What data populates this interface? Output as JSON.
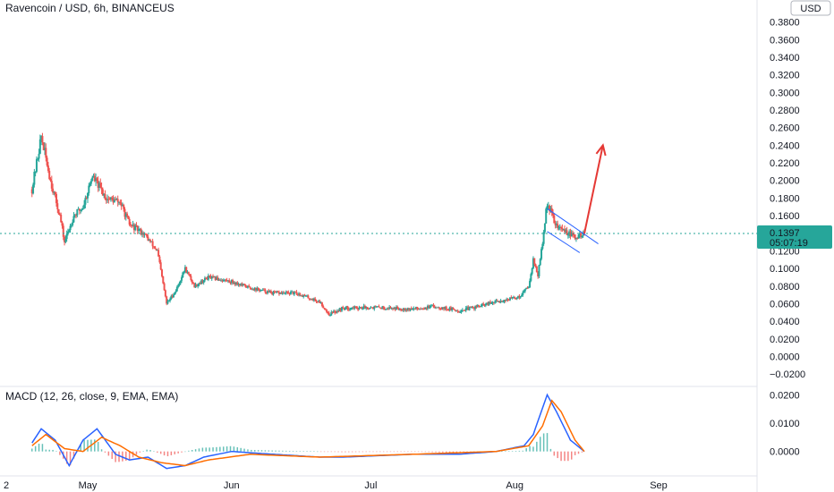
{
  "chart_data": [
    {
      "type": "candlestick",
      "title": "Ravencoin / USD, 6h, BINANCEUS",
      "currency_badge": "USD",
      "y_ticks": [
        -0.02,
        0.0,
        0.02,
        0.04,
        0.06,
        0.08,
        0.1,
        0.12,
        0.14,
        0.16,
        0.18,
        0.2,
        0.22,
        0.24,
        0.26,
        0.28,
        0.3,
        0.32,
        0.34,
        0.36,
        0.38
      ],
      "y_tick_labels": [
        "−0.0200",
        "0.0000",
        "0.0200",
        "0.0400",
        "0.0600",
        "0.0800",
        "0.1000",
        "0.1200",
        "0.1400",
        "0.1600",
        "0.1800",
        "0.2000",
        "0.2200",
        "0.2400",
        "0.2600",
        "0.2800",
        "0.3000",
        "0.3200",
        "0.3400",
        "0.3600",
        "0.3800"
      ],
      "ylim": [
        -0.032,
        0.405
      ],
      "x_tick_labels": [
        "2",
        "May",
        "Jun",
        "Jul",
        "Aug",
        "Sep"
      ],
      "last_price": {
        "value": 0.1397,
        "label": "0.1397",
        "countdown": "05:07:19",
        "color": "#26a69a"
      },
      "close_path": [
        {
          "x": "Apr 19",
          "y": 0.19
        },
        {
          "x": "Apr 21",
          "y": 0.25
        },
        {
          "x": "Apr 23",
          "y": 0.2
        },
        {
          "x": "Apr 25",
          "y": 0.16
        },
        {
          "x": "Apr 26",
          "y": 0.13
        },
        {
          "x": "Apr 28",
          "y": 0.16
        },
        {
          "x": "Apr 30",
          "y": 0.17
        },
        {
          "x": "May 2",
          "y": 0.205
        },
        {
          "x": "May 5",
          "y": 0.18
        },
        {
          "x": "May 8",
          "y": 0.175
        },
        {
          "x": "May 10",
          "y": 0.15
        },
        {
          "x": "May 13",
          "y": 0.14
        },
        {
          "x": "May 16",
          "y": 0.12
        },
        {
          "x": "May 18",
          "y": 0.06
        },
        {
          "x": "May 20",
          "y": 0.075
        },
        {
          "x": "May 22",
          "y": 0.1
        },
        {
          "x": "May 24",
          "y": 0.08
        },
        {
          "x": "May 27",
          "y": 0.09
        },
        {
          "x": "Jun 1",
          "y": 0.085
        },
        {
          "x": "Jun 5",
          "y": 0.078
        },
        {
          "x": "Jun 10",
          "y": 0.072
        },
        {
          "x": "Jun 15",
          "y": 0.072
        },
        {
          "x": "Jun 20",
          "y": 0.062
        },
        {
          "x": "Jun 22",
          "y": 0.048
        },
        {
          "x": "Jun 25",
          "y": 0.055
        },
        {
          "x": "Jul 1",
          "y": 0.056
        },
        {
          "x": "Jul 10",
          "y": 0.054
        },
        {
          "x": "Jul 15",
          "y": 0.057
        },
        {
          "x": "Jul 20",
          "y": 0.052
        },
        {
          "x": "Jul 25",
          "y": 0.058
        },
        {
          "x": "Jul 28",
          "y": 0.062
        },
        {
          "x": "Aug 2",
          "y": 0.068
        },
        {
          "x": "Aug 4",
          "y": 0.08
        },
        {
          "x": "Aug 5",
          "y": 0.11
        },
        {
          "x": "Aug 6",
          "y": 0.092
        },
        {
          "x": "Aug 7",
          "y": 0.13
        },
        {
          "x": "Aug 8",
          "y": 0.175
        },
        {
          "x": "Aug 10",
          "y": 0.148
        },
        {
          "x": "Aug 12",
          "y": 0.142
        },
        {
          "x": "Aug 14",
          "y": 0.135
        },
        {
          "x": "Aug 16",
          "y": 0.1397
        }
      ],
      "annotations": {
        "channel_upper": [
          {
            "x": "Aug 8",
            "y": 0.168
          },
          {
            "x": "Aug 19",
            "y": 0.128
          }
        ],
        "channel_lower": [
          {
            "x": "Aug 8",
            "y": 0.142
          },
          {
            "x": "Aug 15",
            "y": 0.118
          }
        ],
        "projection_arrow": {
          "from": {
            "x": "Aug 16",
            "y": 0.1397
          },
          "to": {
            "x": "Aug 20",
            "y": 0.24
          },
          "color": "#e53935"
        }
      }
    },
    {
      "type": "macd",
      "title": "MACD (12, 26, close, 9, EMA, EMA)",
      "y_ticks": [
        0.0,
        0.01,
        0.02
      ],
      "y_tick_labels": [
        "0.0000",
        "0.0100",
        "0.0200"
      ],
      "ylim": [
        -0.008,
        0.022
      ],
      "series": [
        {
          "name": "MACD",
          "color": "#2962ff",
          "values_path": [
            {
              "x": "Apr 19",
              "y": 0.003
            },
            {
              "x": "Apr 21",
              "y": 0.008
            },
            {
              "x": "Apr 24",
              "y": 0.004
            },
            {
              "x": "Apr 27",
              "y": -0.005
            },
            {
              "x": "Apr 30",
              "y": 0.004
            },
            {
              "x": "May 3",
              "y": 0.008
            },
            {
              "x": "May 7",
              "y": -0.001
            },
            {
              "x": "May 10",
              "y": -0.003
            },
            {
              "x": "May 14",
              "y": -0.002
            },
            {
              "x": "May 18",
              "y": -0.006
            },
            {
              "x": "May 22",
              "y": -0.005
            },
            {
              "x": "May 26",
              "y": -0.002
            },
            {
              "x": "Jun 1",
              "y": 0.0
            },
            {
              "x": "Jun 10",
              "y": -0.001
            },
            {
              "x": "Jun 20",
              "y": -0.002
            },
            {
              "x": "Jun 25",
              "y": -0.002
            },
            {
              "x": "Jul 10",
              "y": -0.001
            },
            {
              "x": "Jul 20",
              "y": -0.001
            },
            {
              "x": "Jul 28",
              "y": 0.0
            },
            {
              "x": "Aug 3",
              "y": 0.002
            },
            {
              "x": "Aug 5",
              "y": 0.006
            },
            {
              "x": "Aug 8",
              "y": 0.02
            },
            {
              "x": "Aug 10",
              "y": 0.014
            },
            {
              "x": "Aug 13",
              "y": 0.004
            },
            {
              "x": "Aug 16",
              "y": 0.0
            }
          ]
        },
        {
          "name": "Signal",
          "color": "#ff6d00",
          "values_path": [
            {
              "x": "Apr 19",
              "y": 0.002
            },
            {
              "x": "Apr 22",
              "y": 0.006
            },
            {
              "x": "Apr 26",
              "y": 0.001
            },
            {
              "x": "Apr 30",
              "y": 0.0
            },
            {
              "x": "May 4",
              "y": 0.005
            },
            {
              "x": "May 8",
              "y": 0.002
            },
            {
              "x": "May 12",
              "y": -0.002
            },
            {
              "x": "May 17",
              "y": -0.004
            },
            {
              "x": "May 22",
              "y": -0.005
            },
            {
              "x": "May 27",
              "y": -0.003
            },
            {
              "x": "Jun 5",
              "y": -0.001
            },
            {
              "x": "Jun 20",
              "y": -0.002
            },
            {
              "x": "Jul 10",
              "y": -0.001
            },
            {
              "x": "Jul 28",
              "y": 0.0
            },
            {
              "x": "Aug 4",
              "y": 0.002
            },
            {
              "x": "Aug 7",
              "y": 0.009
            },
            {
              "x": "Aug 9",
              "y": 0.018
            },
            {
              "x": "Aug 11",
              "y": 0.014
            },
            {
              "x": "Aug 14",
              "y": 0.004
            },
            {
              "x": "Aug 16",
              "y": 0.0
            }
          ]
        }
      ],
      "histogram_colors": {
        "positive": "#26a69a",
        "negative": "#ef5350"
      }
    }
  ]
}
